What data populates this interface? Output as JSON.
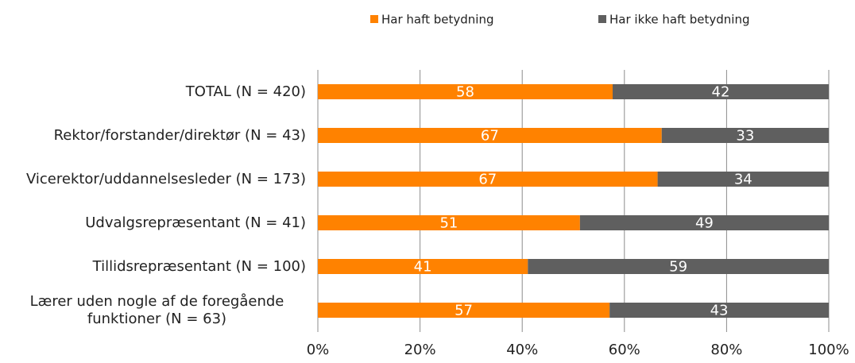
{
  "chart_data": {
    "type": "stacked-bar-horizontal",
    "categories": [
      "TOTAL (N = 420)",
      "Rektor/forstander/direktør (N = 43)",
      "Vicerektor/uddannelsesleder (N = 173)",
      "Udvalgsrepræsentant (N = 41)",
      "Tillidsrepræsentant (N = 100)",
      "Lærer uden nogle af de foregående funktioner (N = 63)"
    ],
    "series": [
      {
        "name": "Har haft betydning",
        "color": "#ff8200",
        "values": [
          57.7,
          67.3,
          66.5,
          51.3,
          41.1,
          57.1
        ],
        "value_labels": [
          "58",
          "67",
          "67",
          "51",
          "41",
          "57"
        ]
      },
      {
        "name": "Har ikke haft betydning",
        "color": "#5f5f5f",
        "values": [
          42.3,
          32.7,
          33.5,
          48.7,
          58.9,
          42.9
        ],
        "value_labels": [
          "42",
          "33",
          "34",
          "49",
          "59",
          "43"
        ]
      }
    ],
    "xlim": [
      0,
      100
    ],
    "xticks": [
      {
        "value": 0,
        "label": "0%"
      },
      {
        "value": 20,
        "label": "20%"
      },
      {
        "value": 40,
        "label": "40%"
      },
      {
        "value": 60,
        "label": "60%"
      },
      {
        "value": 80,
        "label": "80%"
      },
      {
        "value": 100,
        "label": "100%"
      }
    ],
    "grid": true,
    "legend": "top"
  }
}
